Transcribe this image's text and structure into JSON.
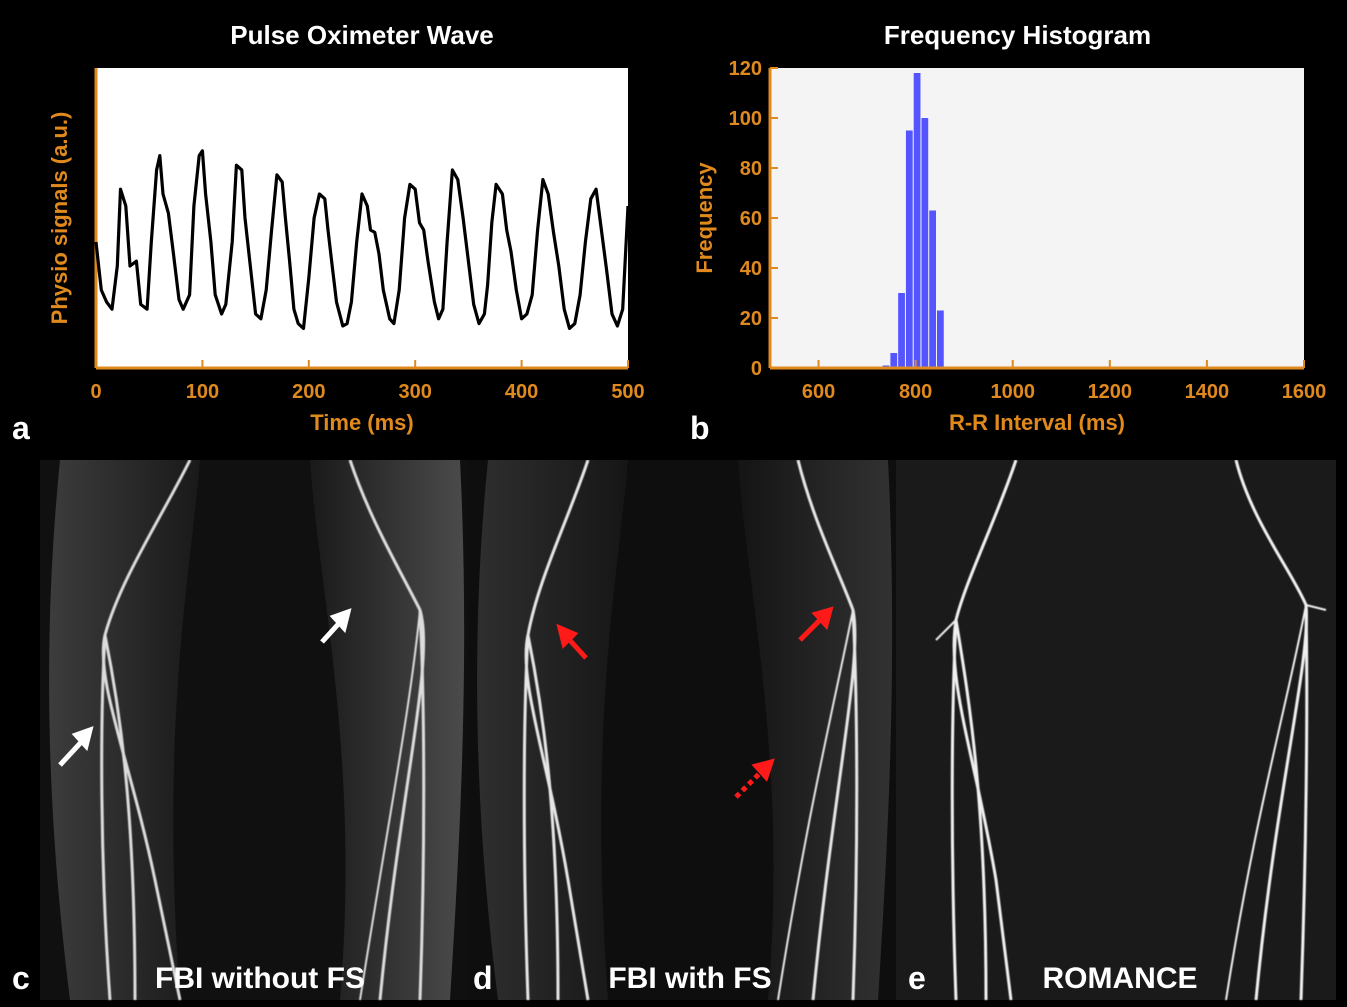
{
  "chart_data": [
    {
      "type": "line",
      "title": "Pulse Oximeter Wave",
      "xlabel": "Time (ms)",
      "ylabel": "Physio signals (a.u.)",
      "xlim": [
        0,
        500
      ],
      "xticks": [
        0,
        100,
        200,
        300,
        400,
        500
      ],
      "series": [
        {
          "x": [
            0,
            5,
            10,
            15,
            20,
            23,
            28,
            32,
            38,
            42,
            48,
            52,
            57,
            60,
            63,
            68,
            72,
            78,
            82,
            88,
            92,
            97,
            100,
            103,
            108,
            112,
            118,
            122,
            128,
            132,
            137,
            140,
            145,
            150,
            155,
            160,
            165,
            170,
            175,
            178,
            182,
            186,
            190,
            195,
            200,
            205,
            210,
            215,
            218,
            222,
            226,
            232,
            236,
            240,
            245,
            250,
            255,
            258,
            262,
            266,
            270,
            276,
            280,
            285,
            290,
            295,
            300,
            304,
            308,
            312,
            318,
            322,
            326,
            330,
            335,
            340,
            345,
            350,
            355,
            360,
            365,
            368,
            372,
            376,
            382,
            386,
            390,
            395,
            400,
            405,
            410,
            415,
            420,
            425,
            430,
            435,
            440,
            445,
            450,
            455,
            460,
            465,
            470,
            475,
            480,
            485,
            490,
            495,
            500
          ],
          "y": [
            40,
            20,
            15,
            12,
            30,
            62,
            55,
            30,
            32,
            14,
            12,
            40,
            70,
            76,
            60,
            52,
            38,
            16,
            12,
            18,
            55,
            76,
            78,
            60,
            40,
            18,
            10,
            14,
            40,
            72,
            70,
            50,
            30,
            10,
            8,
            20,
            45,
            68,
            65,
            50,
            32,
            12,
            6,
            4,
            25,
            50,
            60,
            58,
            45,
            30,
            15,
            5,
            6,
            15,
            40,
            60,
            55,
            45,
            44,
            35,
            20,
            8,
            6,
            20,
            50,
            64,
            62,
            48,
            45,
            32,
            15,
            8,
            12,
            40,
            70,
            66,
            50,
            32,
            14,
            6,
            10,
            22,
            48,
            64,
            60,
            45,
            36,
            20,
            8,
            10,
            18,
            45,
            66,
            60,
            44,
            30,
            12,
            4,
            6,
            18,
            40,
            58,
            62,
            45,
            28,
            10,
            5,
            12,
            55
          ]
        }
      ]
    },
    {
      "type": "bar",
      "title": "Frequency Histogram",
      "xlabel": "R-R Interval (ms)",
      "ylabel": "Frequency",
      "xlim": [
        500,
        1600
      ],
      "ylim": [
        0,
        120
      ],
      "xticks": [
        600,
        800,
        1000,
        1200,
        1400,
        1600
      ],
      "yticks": [
        0,
        20,
        40,
        60,
        80,
        100,
        120
      ],
      "bin_width": 16,
      "bar_color": "#5555ff",
      "bins": [
        732,
        748,
        764,
        780,
        796,
        812,
        828,
        844,
        860
      ],
      "values": [
        1,
        6,
        30,
        95,
        118,
        100,
        63,
        23,
        0
      ]
    }
  ],
  "panels": {
    "a": "a",
    "b": "b",
    "c": "c",
    "d": "d",
    "e": "e"
  },
  "mri_labels": {
    "c": "FBI without FS",
    "d": "FBI with FS",
    "e": "ROMANCE"
  },
  "colors": {
    "axis": "#e08a1e",
    "bars": "#5555ff",
    "white_arrow": "#ffffff",
    "red_arrow": "#ff1a1a"
  }
}
